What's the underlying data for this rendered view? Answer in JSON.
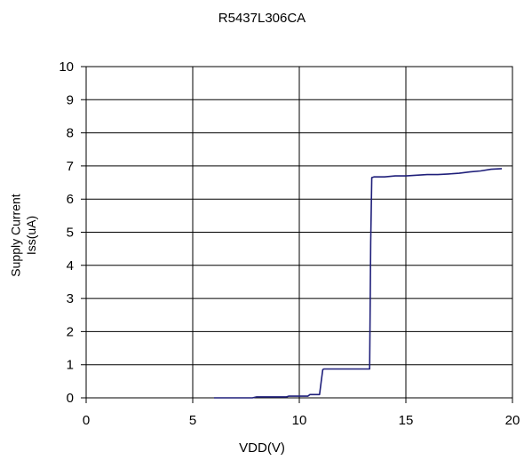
{
  "chart_data": {
    "type": "line",
    "title": "R5437L306CA",
    "xlabel": "VDD(V)",
    "ylabel_lines": [
      "Supply Current",
      "Iss(uA)"
    ],
    "xlim": [
      0,
      20
    ],
    "ylim": [
      0,
      10
    ],
    "xticks": [
      0,
      5,
      10,
      15,
      20
    ],
    "yticks": [
      0,
      1,
      2,
      3,
      4,
      5,
      6,
      7,
      8,
      9,
      10
    ],
    "grid": true,
    "series": [
      {
        "color": "#1f1f7a",
        "x": [
          6.0,
          7.8,
          8.0,
          9.4,
          9.5,
          10.4,
          10.5,
          10.95,
          11.0,
          11.1,
          11.15,
          12.0,
          13.0,
          13.3,
          13.35,
          13.4,
          13.5,
          14.0,
          14.5,
          15.0,
          15.5,
          16.0,
          16.5,
          17.0,
          17.5,
          18.0,
          18.5,
          19.0,
          19.5
        ],
        "values": [
          0.0,
          0.0,
          0.03,
          0.03,
          0.05,
          0.05,
          0.1,
          0.1,
          0.35,
          0.85,
          0.87,
          0.87,
          0.87,
          0.87,
          4.7,
          6.65,
          6.67,
          6.67,
          6.7,
          6.7,
          6.72,
          6.74,
          6.74,
          6.76,
          6.78,
          6.82,
          6.85,
          6.9,
          6.92
        ]
      }
    ]
  }
}
